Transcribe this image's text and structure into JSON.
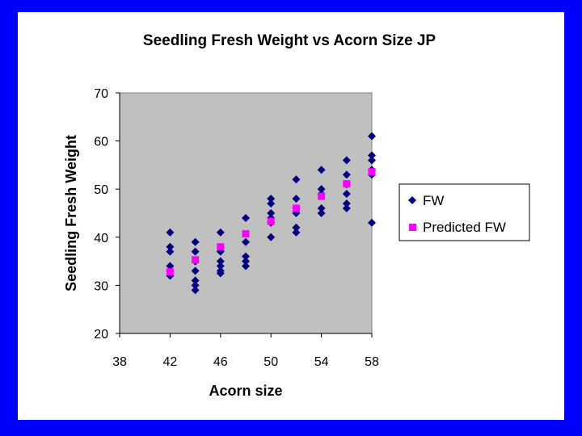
{
  "colors": {
    "background": "#0000FF",
    "plot_area": "#C0C0C0",
    "fw_series": "#000080",
    "predicted_series": "#FF00FF"
  },
  "chart_data": {
    "type": "scatter",
    "title": "Seedling Fresh Weight vs Acorn Size JP",
    "xlabel": "Acorn size",
    "ylabel": "Seedling Fresh Weight",
    "xlim": [
      38,
      58
    ],
    "ylim": [
      20,
      70
    ],
    "xticks": [
      38,
      42,
      46,
      50,
      54,
      58
    ],
    "yticks": [
      20,
      30,
      40,
      50,
      60,
      70
    ],
    "grid": false,
    "legend_position": "right",
    "series": [
      {
        "name": "FW",
        "marker": "diamond",
        "color": "#000080",
        "points": [
          [
            42,
            41
          ],
          [
            42,
            38
          ],
          [
            42,
            37
          ],
          [
            42,
            34
          ],
          [
            42,
            33
          ],
          [
            42,
            32
          ],
          [
            44,
            39
          ],
          [
            44,
            37
          ],
          [
            44,
            35
          ],
          [
            44,
            33
          ],
          [
            44,
            31
          ],
          [
            44,
            30
          ],
          [
            44,
            29
          ],
          [
            46,
            41
          ],
          [
            46,
            37
          ],
          [
            46,
            35
          ],
          [
            46,
            34
          ],
          [
            46,
            33
          ],
          [
            46,
            32.5
          ],
          [
            48,
            44
          ],
          [
            48,
            39
          ],
          [
            48,
            36
          ],
          [
            48,
            35
          ],
          [
            48,
            34
          ],
          [
            50,
            48
          ],
          [
            50,
            47
          ],
          [
            50,
            45
          ],
          [
            50,
            44
          ],
          [
            50,
            43
          ],
          [
            50,
            40
          ],
          [
            52,
            52
          ],
          [
            52,
            48
          ],
          [
            52,
            46
          ],
          [
            52,
            45
          ],
          [
            52,
            42
          ],
          [
            52,
            41
          ],
          [
            54,
            54
          ],
          [
            54,
            50
          ],
          [
            54,
            49
          ],
          [
            54,
            46
          ],
          [
            54,
            45
          ],
          [
            56,
            56
          ],
          [
            56,
            53
          ],
          [
            56,
            51
          ],
          [
            56,
            49
          ],
          [
            56,
            47
          ],
          [
            56,
            46
          ],
          [
            58,
            61
          ],
          [
            58,
            57
          ],
          [
            58,
            56
          ],
          [
            58,
            54
          ],
          [
            58,
            53
          ],
          [
            58,
            43
          ]
        ]
      },
      {
        "name": "Predicted FW",
        "marker": "square",
        "color": "#FF00FF",
        "points": [
          [
            42,
            32.8
          ],
          [
            44,
            35.3
          ],
          [
            46,
            38.0
          ],
          [
            48,
            40.7
          ],
          [
            50,
            43.3
          ],
          [
            52,
            46.0
          ],
          [
            54,
            48.5
          ],
          [
            56,
            51.1
          ],
          [
            58,
            53.6
          ]
        ]
      }
    ]
  }
}
